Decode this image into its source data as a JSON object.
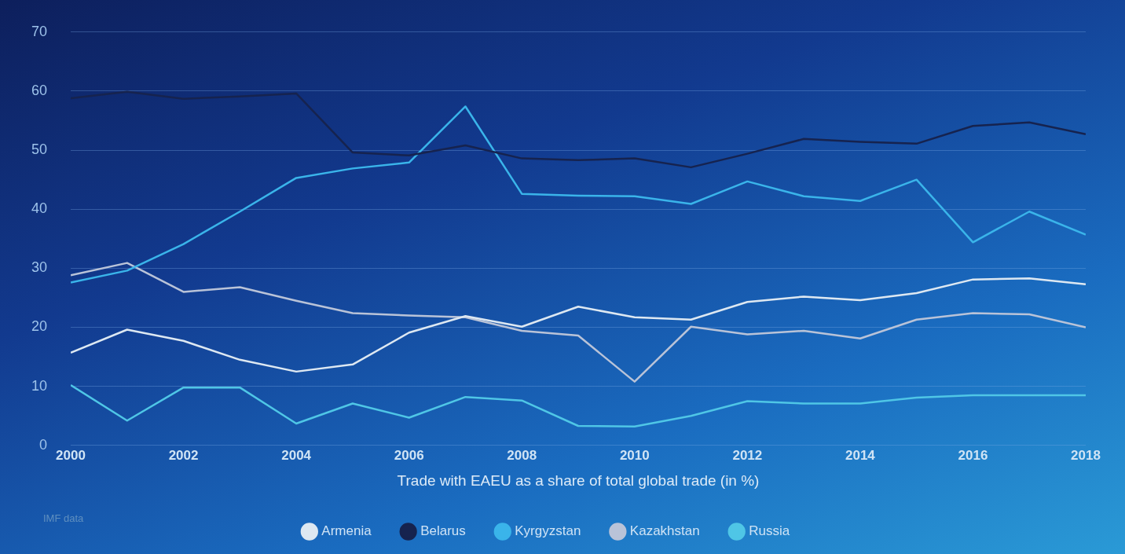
{
  "chart_data": {
    "type": "line",
    "xlabel": "Trade with EAEU as a share of total global trade (in %)",
    "annotations": [
      "IMF data"
    ],
    "x": [
      2000,
      2001,
      2002,
      2003,
      2004,
      2005,
      2006,
      2007,
      2008,
      2009,
      2010,
      2011,
      2012,
      2013,
      2014,
      2015,
      2016,
      2017,
      2018
    ],
    "xlim": [
      2000,
      2018
    ],
    "xticks": [
      2000,
      2002,
      2004,
      2006,
      2008,
      2010,
      2012,
      2014,
      2016,
      2018
    ],
    "ylim": [
      0,
      70
    ],
    "yticks": [
      0,
      10,
      20,
      30,
      40,
      50,
      60,
      70
    ],
    "grid": "y",
    "legend": "bottom",
    "marker": "none",
    "line_style": "solid",
    "series": [
      {
        "name": "Armenia",
        "color": "#dde8f2",
        "values": [
          15.7,
          19.6,
          17.7,
          14.5,
          12.5,
          13.7,
          19.1,
          21.9,
          20.1,
          23.5,
          21.7,
          21.3,
          24.3,
          25.2,
          24.6,
          25.8,
          28.1,
          28.3,
          27.3
        ]
      },
      {
        "name": "Belarus",
        "color": "#16234f",
        "values": [
          58.8,
          59.9,
          58.7,
          59.1,
          59.6,
          49.6,
          49.1,
          50.8,
          48.6,
          48.3,
          48.6,
          47.1,
          49.4,
          51.9,
          51.4,
          51.1,
          54.1,
          54.7,
          52.7
        ]
      },
      {
        "name": "Kyrgyzstan",
        "color": "#3ab4ea",
        "values": [
          27.6,
          29.6,
          34.1,
          39.6,
          45.3,
          46.9,
          47.9,
          57.4,
          42.6,
          42.3,
          42.2,
          40.9,
          44.7,
          42.2,
          41.4,
          45.0,
          34.4,
          39.6,
          35.7
        ]
      },
      {
        "name": "Kazakhstan",
        "color": "#b9c3d8",
        "values": [
          28.8,
          30.9,
          26.0,
          26.8,
          24.5,
          22.4,
          22.0,
          21.7,
          19.4,
          18.6,
          10.8,
          20.1,
          18.8,
          19.4,
          18.1,
          21.3,
          22.4,
          22.2,
          20.0
        ]
      },
      {
        "name": "Russia",
        "color": "#4fc6e6",
        "values": [
          10.2,
          4.2,
          9.8,
          9.8,
          3.7,
          7.1,
          4.7,
          8.2,
          7.6,
          3.3,
          3.2,
          5.0,
          7.5,
          7.1,
          7.1,
          8.1,
          8.5,
          8.5,
          8.5
        ]
      }
    ]
  }
}
